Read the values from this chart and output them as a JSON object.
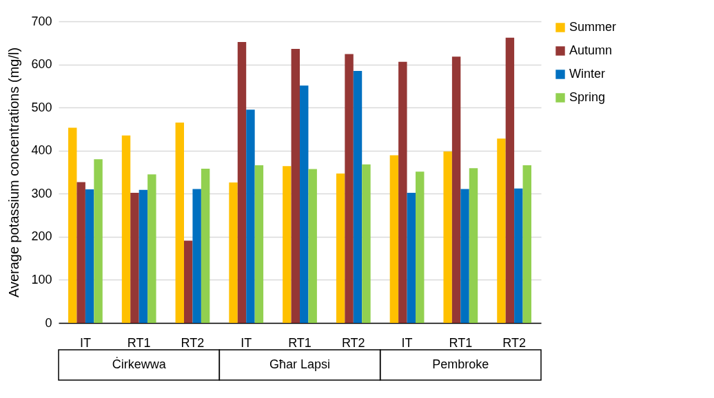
{
  "chart_data": {
    "type": "bar",
    "ylabel": "Average potassium concentrations (mg/l)",
    "categories": [
      "IT",
      "RT1",
      "RT2",
      "IT",
      "RT1",
      "RT2",
      "IT",
      "RT1",
      "RT2"
    ],
    "series": [
      {
        "name": "Summer",
        "color": "#ffc000",
        "values": [
          453,
          435,
          465,
          326,
          364,
          347,
          389,
          398,
          428
        ]
      },
      {
        "name": "Autumn",
        "color": "#953735",
        "values": [
          327,
          302,
          191,
          652,
          636,
          624,
          606,
          618,
          662
        ]
      },
      {
        "name": "Winter",
        "color": "#0070c0",
        "values": [
          310,
          309,
          311,
          495,
          551,
          585,
          302,
          311,
          312
        ]
      },
      {
        "name": "Spring",
        "color": "#92d050",
        "values": [
          380,
          345,
          358,
          366,
          357,
          368,
          351,
          359,
          366
        ]
      }
    ],
    "annotations": [
      "Ċirkewwa",
      "Għar Lapsi",
      "Pembroke"
    ],
    "ylim": [
      0,
      700
    ],
    "yticks": [
      0,
      100,
      200,
      300,
      400,
      500,
      600,
      700
    ],
    "grid": "y",
    "legend": "right"
  }
}
